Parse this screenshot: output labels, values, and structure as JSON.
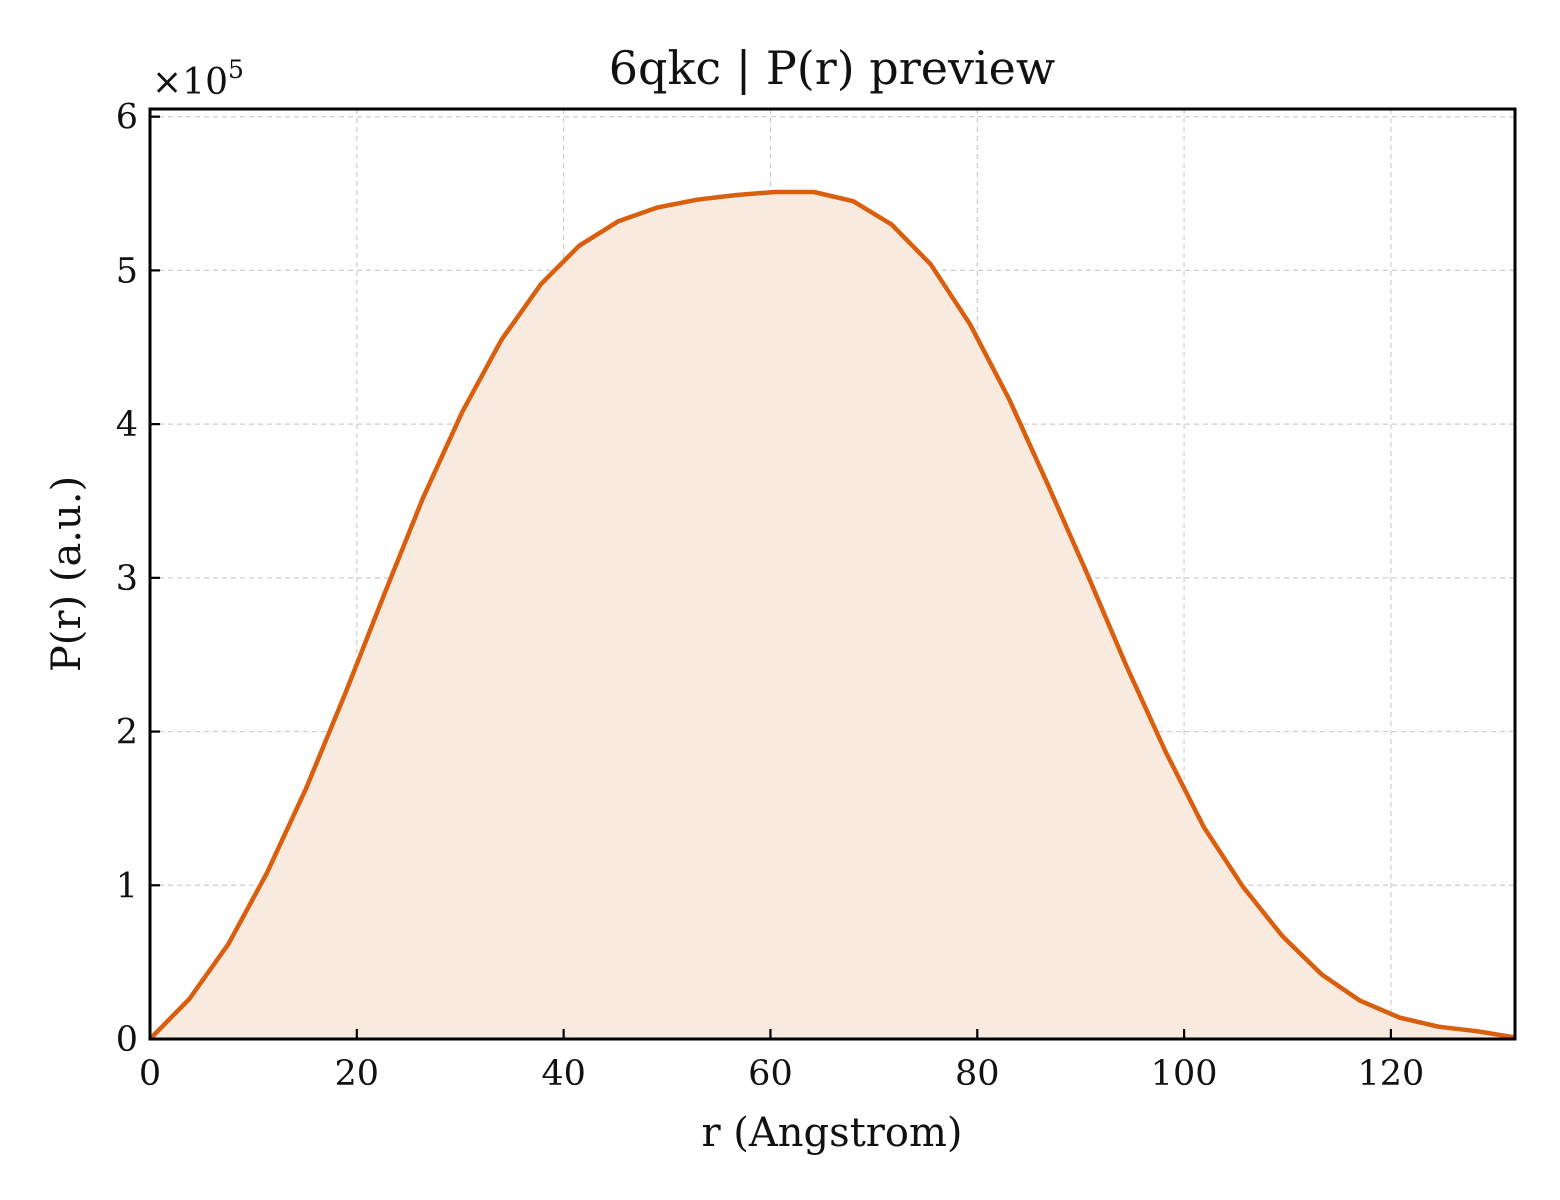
{
  "chart_data": {
    "type": "area",
    "title": "6qkc | P(r) preview",
    "xlabel": "r (Angstrom)",
    "ylabel": "P(r) (a.u.)",
    "y_multiplier_label": "×10",
    "y_multiplier_exponent": "5",
    "xlim": [
      0,
      132
    ],
    "ylim": [
      0,
      6.05
    ],
    "y_scale_factor": 100000,
    "xticks": [
      0,
      20,
      40,
      60,
      80,
      100,
      120
    ],
    "yticks": [
      0,
      1,
      2,
      3,
      4,
      5,
      6
    ],
    "grid": true,
    "line_color": "#d95f0e",
    "fill_color": "#f8eadf",
    "series": [
      {
        "x": [
          0,
          3.8,
          7.6,
          11.3,
          15.1,
          18.9,
          22.7,
          26.4,
          30.2,
          34.0,
          37.8,
          41.5,
          45.3,
          49.1,
          52.9,
          56.6,
          60.4,
          64.2,
          68.0,
          71.7,
          75.5,
          79.3,
          83.1,
          86.8,
          90.6,
          94.4,
          98.2,
          101.9,
          105.7,
          109.5,
          113.3,
          117.0,
          120.8,
          124.6,
          128.4,
          132.0
        ],
        "y": [
          0.0,
          0.26,
          0.62,
          1.08,
          1.63,
          2.25,
          2.9,
          3.52,
          4.08,
          4.55,
          4.91,
          5.16,
          5.32,
          5.41,
          5.46,
          5.49,
          5.51,
          5.51,
          5.45,
          5.3,
          5.04,
          4.65,
          4.16,
          3.61,
          3.03,
          2.43,
          1.87,
          1.38,
          0.99,
          0.67,
          0.42,
          0.25,
          0.14,
          0.08,
          0.05,
          0.01
        ]
      }
    ]
  }
}
